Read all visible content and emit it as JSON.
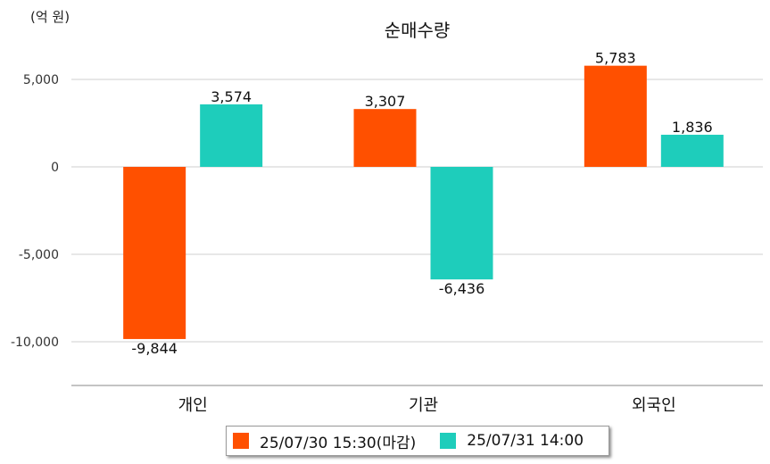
{
  "unit_label": "(억 원)",
  "chart_data": {
    "type": "bar",
    "title": "순매수량",
    "xlabel": "",
    "ylabel": "",
    "categories": [
      "개인",
      "기관",
      "외국인"
    ],
    "series": [
      {
        "name": "25/07/30 15:30(마감)",
        "color": "#ff5000",
        "values": [
          -9844,
          3307,
          5783
        ]
      },
      {
        "name": "25/07/31 14:00",
        "color": "#1ecdbb",
        "values": [
          3574,
          -6436,
          1836
        ]
      }
    ],
    "ylim": [
      -12500,
      7500
    ],
    "yticks": [
      5000,
      0,
      -5000,
      -10000
    ],
    "ytick_labels": [
      "5,000",
      "0",
      "-5,000",
      "-10,000"
    ],
    "data_labels": [
      [
        "-9,844",
        "3,307",
        "5,783"
      ],
      [
        "3,574",
        "-6,436",
        "1,836"
      ]
    ],
    "grid": true,
    "legend_position": "bottom"
  }
}
